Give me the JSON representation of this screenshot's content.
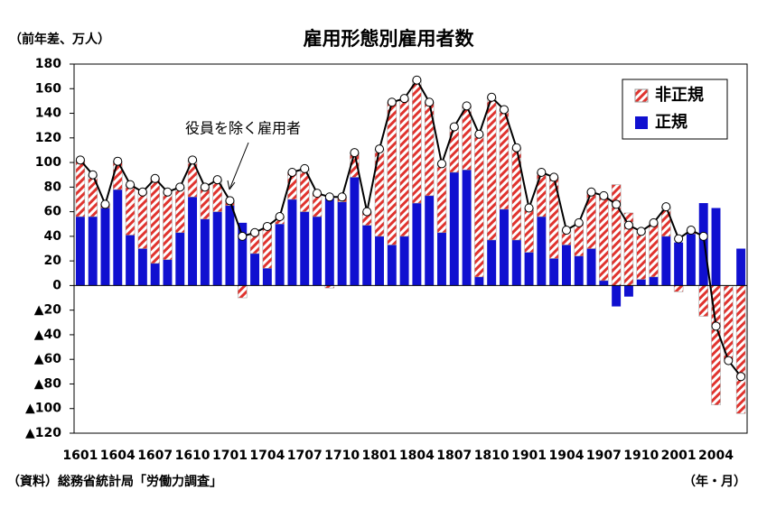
{
  "chart_data": {
    "type": "bar",
    "title": "雇用形態別雇用者数",
    "y_label": "（前年差、万人）",
    "x_label": "（年・月）",
    "source": "（資料）総務省統計局「労働力調査」",
    "annotation": "役員を除く雇用者",
    "categories": [
      "1601",
      null,
      null,
      "1604",
      null,
      null,
      "1607",
      null,
      null,
      "1610",
      null,
      null,
      "1701",
      null,
      null,
      "1704",
      null,
      null,
      "1707",
      null,
      null,
      "1710",
      null,
      null,
      "1801",
      null,
      null,
      "1804",
      null,
      null,
      "1807",
      null,
      null,
      "1810",
      null,
      null,
      "1901",
      null,
      null,
      "1904",
      null,
      null,
      "1907",
      null,
      null,
      "1910",
      null,
      null,
      "2001",
      null,
      null,
      "2004",
      null,
      null
    ],
    "series": [
      {
        "name": "非正規",
        "color": "#e0332e",
        "hatch": true,
        "values": [
          46,
          34,
          3,
          23,
          41,
          46,
          69,
          55,
          37,
          30,
          26,
          26,
          4,
          -10,
          17,
          34,
          6,
          22,
          35,
          19,
          -2,
          4,
          20,
          11,
          71,
          116,
          112,
          100,
          76,
          56,
          37,
          52,
          116,
          116,
          81,
          75,
          36,
          36,
          66,
          12,
          27,
          46,
          69,
          82,
          59,
          39,
          44,
          24,
          -5,
          3,
          -25,
          -97,
          -60,
          -104
        ]
      },
      {
        "name": "正規",
        "color": "#1010d0",
        "values": [
          56,
          56,
          63,
          78,
          41,
          30,
          18,
          21,
          43,
          72,
          54,
          60,
          65,
          51,
          26,
          14,
          50,
          70,
          60,
          56,
          71,
          68,
          88,
          49,
          40,
          33,
          40,
          67,
          73,
          43,
          92,
          94,
          7,
          37,
          62,
          37,
          27,
          56,
          22,
          33,
          24,
          30,
          4,
          -17,
          -9,
          5,
          7,
          40,
          35,
          42,
          67,
          63,
          0,
          30
        ]
      },
      {
        "type": "line",
        "color": "#000000",
        "values": [
          102,
          90,
          66,
          101,
          82,
          76,
          87,
          76,
          80,
          102,
          80,
          86,
          69,
          40,
          43,
          48,
          56,
          92,
          95,
          75,
          72,
          72,
          108,
          60,
          111,
          149,
          152,
          167,
          149,
          99,
          129,
          146,
          123,
          153,
          143,
          112,
          63,
          92,
          88,
          45,
          51,
          76,
          73,
          66,
          49,
          44,
          51,
          64,
          38,
          45,
          40,
          -33,
          -61,
          -74
        ]
      }
    ],
    "ylim": [
      -120,
      180
    ],
    "yticks": [
      {
        "value": -120,
        "label": "▲120"
      },
      {
        "value": -100,
        "label": "▲100"
      },
      {
        "value": -80,
        "label": "▲80"
      },
      {
        "value": -60,
        "label": "▲60"
      },
      {
        "value": -40,
        "label": "▲40"
      },
      {
        "value": -20,
        "label": "▲20"
      },
      0,
      20,
      40,
      60,
      80,
      100,
      120,
      140,
      160,
      180
    ],
    "legend": "upper right"
  }
}
